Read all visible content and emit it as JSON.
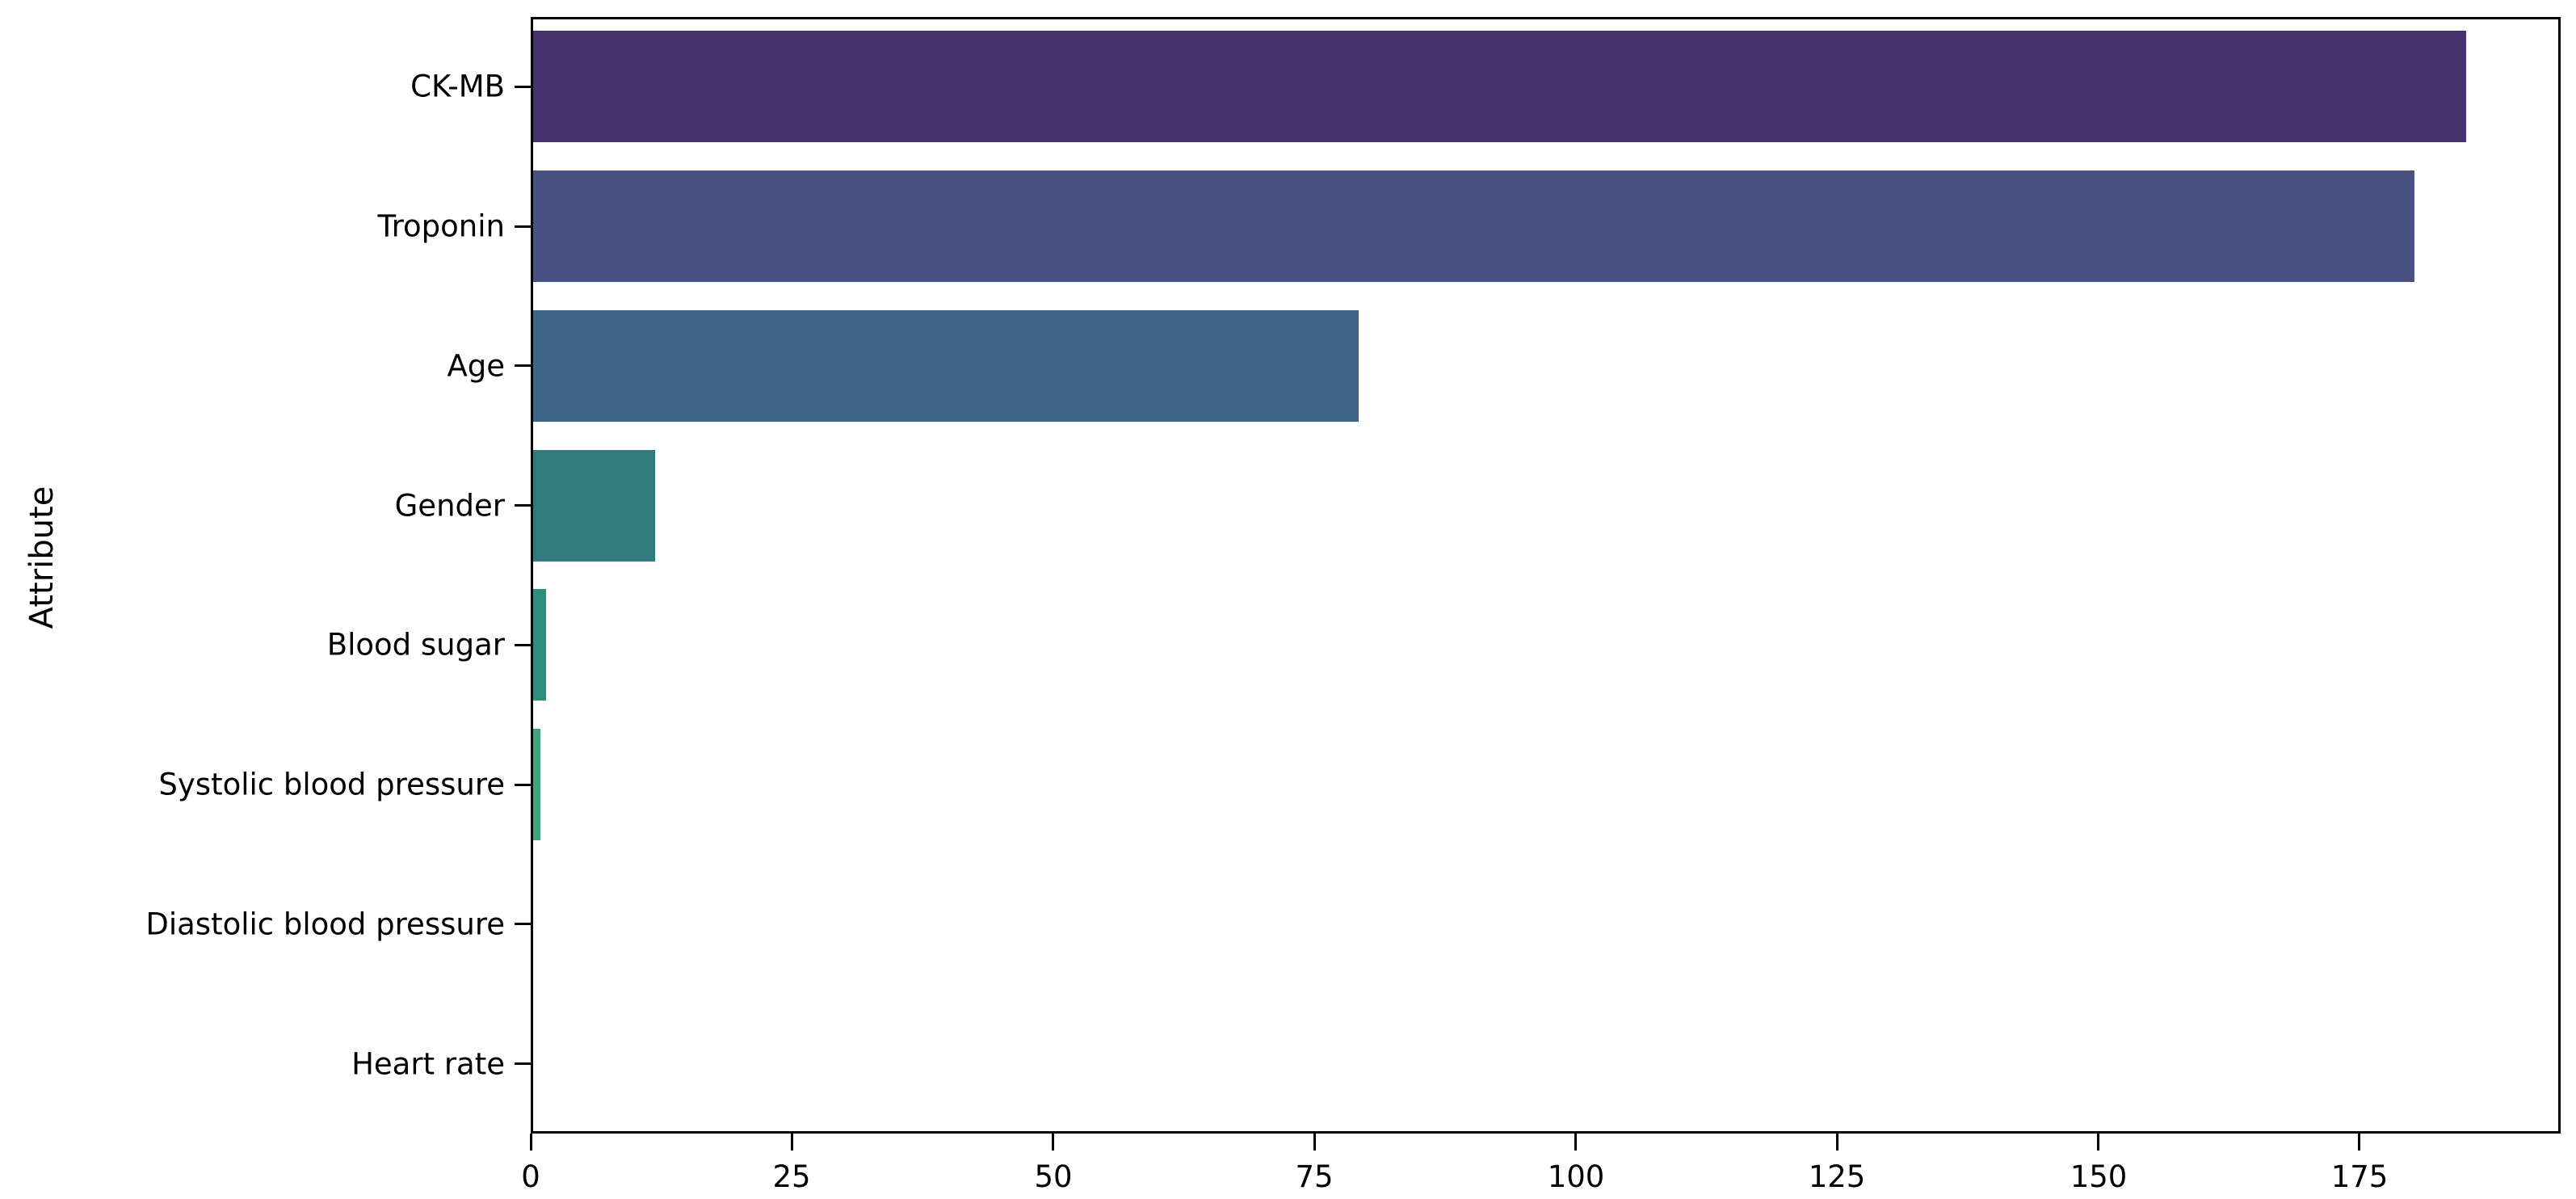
{
  "chart_data": {
    "type": "bar",
    "orientation": "horizontal",
    "title": "",
    "xlabel": "",
    "ylabel": "Attribute",
    "categories": [
      "CK-MB",
      "Troponin",
      "Age",
      "Gender",
      "Blood sugar",
      "Systolic blood pressure",
      "Diastolic blood pressure",
      "Heart rate"
    ],
    "values": [
      185,
      180,
      79,
      11.7,
      1.2,
      0.7,
      0,
      0
    ],
    "bar_colors": [
      "#46326d",
      "#4a5284",
      "#3e6487",
      "#327a7e",
      "#2d8f7d",
      "#3fa47b",
      null,
      null
    ],
    "xticks": [
      0,
      25,
      50,
      75,
      100,
      125,
      150,
      175
    ],
    "xlim": [
      0,
      194.25
    ],
    "grid": false,
    "legend": null,
    "background_color": "#ffffff",
    "spine_color": "#000000"
  }
}
